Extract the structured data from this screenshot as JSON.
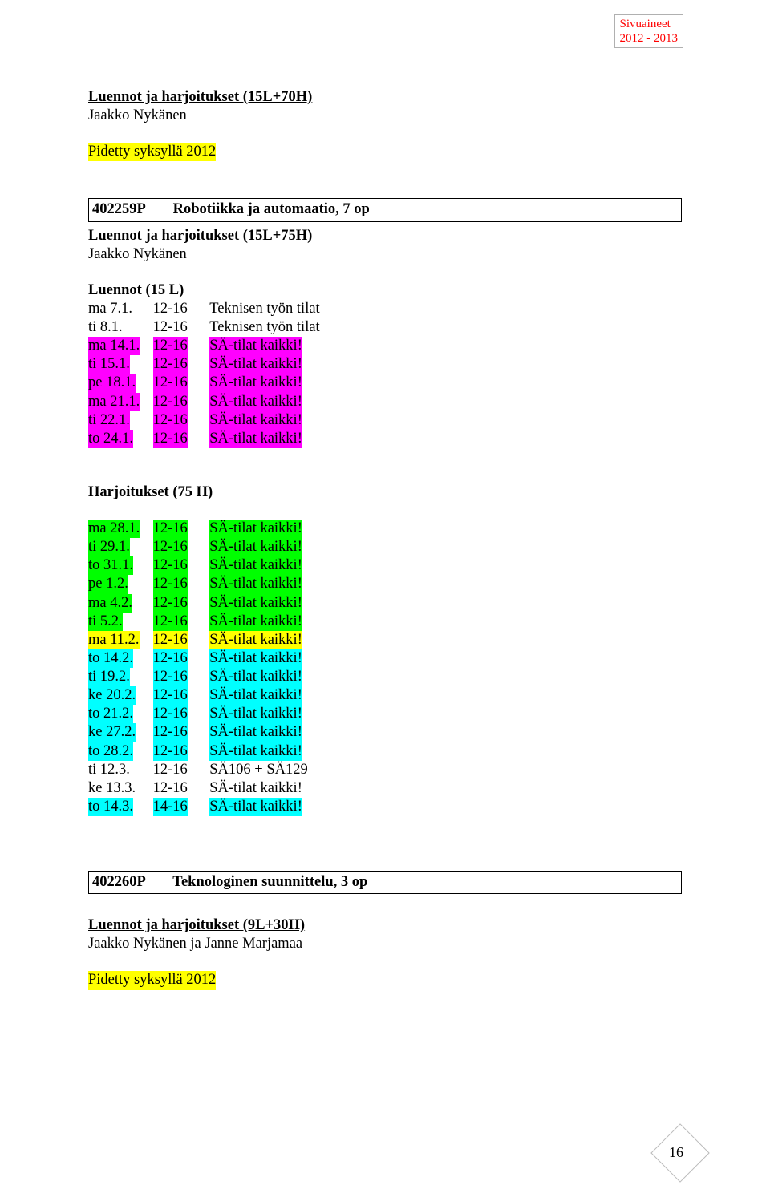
{
  "colors": {
    "yellow": "#ffff00",
    "magenta": "#ff00ff",
    "green": "#00ff00",
    "cyan": "#00ffff",
    "red": "#ff0000",
    "black": "#000000",
    "white": "#ffffff"
  },
  "header": {
    "line1": "Sivuaineet",
    "line2": "2012 - 2013"
  },
  "section1": {
    "title": "Luennot ja harjoitukset (15L+70H)",
    "instructor": "Jaakko Nykänen",
    "note": "Pidetty syksyllä 2012",
    "note_highlight": "yellow"
  },
  "course1": {
    "code": "402259P",
    "name": "Robotiikka ja automaatio, 7 op",
    "subtitle": "Luennot ja harjoitukset (15L+75H)",
    "instructor": "Jaakko Nykänen"
  },
  "lectures": {
    "title": "Luennot (15 L)",
    "rows": [
      {
        "date": "ma 7.1.",
        "time": "12-16",
        "room": "Teknisen työn tilat",
        "highlight": "none"
      },
      {
        "date": "ti 8.1.",
        "time": "12-16",
        "room": "Teknisen työn tilat",
        "highlight": "none"
      },
      {
        "date": "ma 14.1.",
        "time": "12-16",
        "room": "SÄ-tilat kaikki!",
        "highlight": "magenta"
      },
      {
        "date": "ti 15.1.",
        "time": "12-16",
        "room": "SÄ-tilat kaikki!",
        "highlight": "magenta"
      },
      {
        "date": "pe 18.1.",
        "time": "12-16",
        "room": "SÄ-tilat kaikki!",
        "highlight": "magenta"
      },
      {
        "date": "ma 21.1.",
        "time": "12-16",
        "room": "SÄ-tilat kaikki!",
        "highlight": "magenta"
      },
      {
        "date": "ti 22.1.",
        "time": "12-16",
        "room": "SÄ-tilat kaikki!",
        "highlight": "magenta"
      },
      {
        "date": "to 24.1.",
        "time": "12-16",
        "room": "SÄ-tilat kaikki!",
        "highlight": "magenta"
      }
    ]
  },
  "exercises": {
    "title": "Harjoitukset (75 H)",
    "rows": [
      {
        "date": "ma 28.1.",
        "time": "12-16",
        "room": "SÄ-tilat kaikki!",
        "highlight": "green"
      },
      {
        "date": "ti 29.1.",
        "time": "12-16",
        "room": "SÄ-tilat kaikki!",
        "highlight": "green"
      },
      {
        "date": "to 31.1.",
        "time": "12-16",
        "room": "SÄ-tilat kaikki!",
        "highlight": "green"
      },
      {
        "date": "pe 1.2.",
        "time": "12-16",
        "room": "SÄ-tilat kaikki!",
        "highlight": "green"
      },
      {
        "date": "ma 4.2.",
        "time": "12-16",
        "room": "SÄ-tilat kaikki!",
        "highlight": "green"
      },
      {
        "date": "ti 5.2.",
        "time": "12-16",
        "room": "SÄ-tilat kaikki!",
        "highlight": "green"
      },
      {
        "date": "ma 11.2.",
        "time": "12-16",
        "room": "SÄ-tilat kaikki!",
        "highlight": "yellow"
      },
      {
        "date": "to 14.2.",
        "time": "12-16",
        "room": "SÄ-tilat kaikki!",
        "highlight": "cyan"
      },
      {
        "date": "ti 19.2.",
        "time": "12-16",
        "room": "SÄ-tilat kaikki!",
        "highlight": "cyan"
      },
      {
        "date": "ke 20.2.",
        "time": "12-16",
        "room": "SÄ-tilat kaikki!",
        "highlight": "cyan"
      },
      {
        "date": "to 21.2.",
        "time": "12-16",
        "room": "SÄ-tilat kaikki!",
        "highlight": "cyan"
      },
      {
        "date": "ke 27.2.",
        "time": "12-16",
        "room": "SÄ-tilat kaikki!",
        "highlight": "cyan"
      },
      {
        "date": "to 28.2.",
        "time": "12-16",
        "room": "SÄ-tilat kaikki!",
        "highlight": "cyan"
      },
      {
        "date": "ti 12.3.",
        "time": "12-16",
        "room": "SÄ106 + SÄ129",
        "highlight": "none"
      },
      {
        "date": "ke 13.3.",
        "time": "12-16",
        "room": "SÄ-tilat kaikki!",
        "highlight": "none"
      },
      {
        "date": "to 14.3.",
        "time": "14-16",
        "room": "SÄ-tilat kaikki!",
        "highlight": "cyan"
      }
    ]
  },
  "course2": {
    "code": "402260P",
    "name": "Teknologinen suunnittelu, 3 op",
    "subtitle": "Luennot ja harjoitukset (9L+30H)",
    "instructors": "Jaakko Nykänen ja Janne Marjamaa",
    "note": "Pidetty syksyllä 2012",
    "note_highlight": "yellow"
  },
  "page_number": "16"
}
